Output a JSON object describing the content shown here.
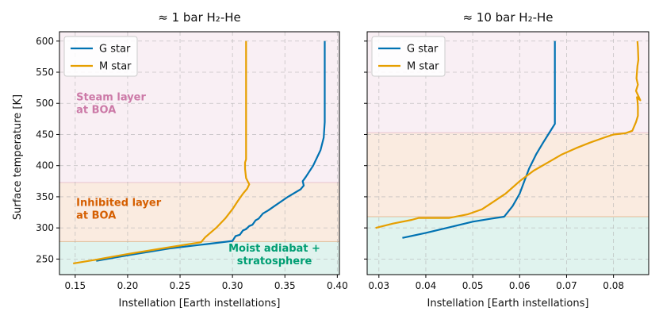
{
  "colors": {
    "g_star": "#0072b2",
    "m_star": "#e69f00",
    "steam": "#cc79a7",
    "inhibited": "#d55e00",
    "moist": "#009e73"
  },
  "chart_data": [
    {
      "type": "line",
      "title": "≈ 1 bar H₂-He",
      "xlabel": "Instellation [Earth instellations]",
      "ylabel": "Surface temperature [K]",
      "xlim": [
        0.135,
        0.402
      ],
      "ylim": [
        225,
        615
      ],
      "xticks": [
        0.15,
        0.2,
        0.25,
        0.3,
        0.35,
        0.4
      ],
      "xtick_labels": [
        "0.15",
        "0.20",
        "0.25",
        "0.30",
        "0.35",
        "0.40"
      ],
      "yticks": [
        250,
        300,
        350,
        400,
        450,
        500,
        550,
        600
      ],
      "ytick_labels": [
        "250",
        "300",
        "350",
        "400",
        "450",
        "500",
        "550",
        "600"
      ],
      "regions": [
        {
          "name": "Steam layer at BOA",
          "label_lines": [
            "Steam layer",
            "at BOA"
          ],
          "y0": 373,
          "y1": 615,
          "color_key": "steam",
          "label_x": 0.151,
          "label_y": 505
        },
        {
          "name": "Inhibited layer at BOA",
          "label_lines": [
            "Inhibited layer",
            "at BOA"
          ],
          "y0": 278,
          "y1": 373,
          "color_key": "inhibited",
          "label_x": 0.151,
          "label_y": 335
        },
        {
          "name": "Moist adiabat + stratosphere",
          "label_lines": [
            "Moist adiabat +",
            "stratosphere"
          ],
          "y0": 225,
          "y1": 278,
          "color_key": "moist",
          "label_x": 0.34,
          "label_y": 262,
          "anchor": "middle"
        }
      ],
      "legend": {
        "position": "top-left",
        "entries": [
          "G star",
          "M star"
        ]
      },
      "series": [
        {
          "name": "G star",
          "color_key": "g_star",
          "x": [
            0.17,
            0.2,
            0.24,
            0.275,
            0.3,
            0.303,
            0.307,
            0.31,
            0.313,
            0.316,
            0.319,
            0.322,
            0.325,
            0.329,
            0.334,
            0.34,
            0.353,
            0.365,
            0.368,
            0.367,
            0.37,
            0.377,
            0.384,
            0.387,
            0.388,
            0.388,
            0.388
          ],
          "y": [
            247,
            256,
            267,
            274,
            279,
            287,
            289,
            296,
            298,
            303,
            305,
            312,
            315,
            323,
            328,
            335,
            350,
            362,
            368,
            375,
            382,
            400,
            425,
            445,
            470,
            480,
            600
          ]
        },
        {
          "name": "M star",
          "color_key": "m_star",
          "x": [
            0.148,
            0.17,
            0.2,
            0.24,
            0.27,
            0.274,
            0.285,
            0.293,
            0.3,
            0.305,
            0.31,
            0.314,
            0.316,
            0.313,
            0.312,
            0.312,
            0.313,
            0.313,
            0.313
          ],
          "y": [
            243,
            249,
            258,
            269,
            277,
            285,
            301,
            315,
            330,
            343,
            355,
            363,
            370,
            380,
            395,
            405,
            410,
            450,
            600
          ]
        }
      ]
    },
    {
      "type": "line",
      "title": "≈ 10 bar H₂-He",
      "xlabel": "Instellation [Earth instellations]",
      "ylabel": "",
      "xlim": [
        0.0275,
        0.0875
      ],
      "ylim": [
        225,
        615
      ],
      "xticks": [
        0.03,
        0.04,
        0.05,
        0.06,
        0.07,
        0.08
      ],
      "xtick_labels": [
        "0.03",
        "0.04",
        "0.05",
        "0.06",
        "0.07",
        "0.08"
      ],
      "yticks": [
        250,
        300,
        350,
        400,
        450,
        500,
        550,
        600
      ],
      "ytick_labels": [],
      "regions": [
        {
          "name": "Steam layer at BOA",
          "label_lines": [],
          "y0": 453,
          "y1": 615,
          "color_key": "steam"
        },
        {
          "name": "Inhibited layer at BOA",
          "label_lines": [],
          "y0": 318,
          "y1": 453,
          "color_key": "inhibited"
        },
        {
          "name": "Moist adiabat + stratosphere",
          "label_lines": [],
          "y0": 225,
          "y1": 318,
          "color_key": "moist"
        }
      ],
      "legend": {
        "position": "top-left",
        "entries": [
          "G star",
          "M star"
        ]
      },
      "series": [
        {
          "name": "G star",
          "color_key": "g_star",
          "x": [
            0.035,
            0.04,
            0.045,
            0.05,
            0.054,
            0.0567,
            0.0585,
            0.06,
            0.061,
            0.062,
            0.0635,
            0.065,
            0.0665,
            0.0675,
            0.0675,
            0.0675
          ],
          "y": [
            284,
            292,
            301,
            310,
            315,
            318,
            335,
            355,
            375,
            395,
            418,
            437,
            455,
            467,
            470,
            600
          ]
        },
        {
          "name": "M star",
          "color_key": "m_star",
          "x": [
            0.0293,
            0.033,
            0.037,
            0.0385,
            0.045,
            0.049,
            0.052,
            0.054,
            0.057,
            0.06,
            0.063,
            0.066,
            0.069,
            0.072,
            0.075,
            0.078,
            0.08,
            0.0825,
            0.084,
            0.0848,
            0.0852,
            0.0852,
            0.0851,
            0.085,
            0.0857,
            0.0848,
            0.0852,
            0.0849,
            0.0851,
            0.0853,
            0.0852,
            0.0851
          ],
          "y": [
            300,
            307,
            313,
            316,
            316,
            322,
            330,
            340,
            355,
            375,
            392,
            405,
            418,
            428,
            437,
            445,
            450,
            452,
            456,
            470,
            480,
            495,
            505,
            510,
            505,
            520,
            530,
            540,
            560,
            570,
            590,
            600
          ]
        }
      ]
    }
  ]
}
